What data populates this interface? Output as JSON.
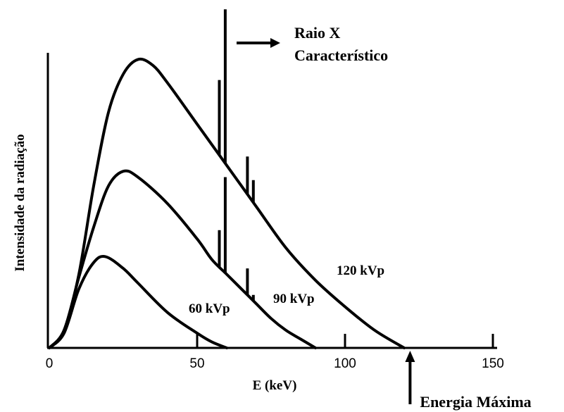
{
  "chart_data": {
    "type": "line",
    "title": "",
    "xlabel": "E (keV)",
    "ylabel": "Intensidade da radiação",
    "xlim": [
      0,
      150
    ],
    "ylim": [
      0,
      1
    ],
    "xticks": [
      0,
      50,
      100,
      150
    ],
    "grid": false,
    "legend": "none",
    "series": [
      {
        "name": "60 kVp",
        "x": [
          0,
          5,
          10,
          15,
          19,
          25,
          30,
          40,
          50,
          55,
          60
        ],
        "y": [
          0,
          0.05,
          0.2,
          0.29,
          0.31,
          0.27,
          0.22,
          0.12,
          0.05,
          0.02,
          0
        ]
      },
      {
        "name": "90 kVp",
        "x": [
          0,
          5,
          10,
          15,
          20,
          25,
          30,
          40,
          50,
          55,
          60,
          65,
          70,
          75,
          80,
          85,
          90
        ],
        "y": [
          0,
          0.06,
          0.24,
          0.41,
          0.55,
          0.6,
          0.58,
          0.49,
          0.37,
          0.3,
          0.25,
          0.2,
          0.15,
          0.1,
          0.06,
          0.03,
          0
        ]
      },
      {
        "name": "120 kVp",
        "x": [
          0,
          5,
          10,
          15,
          20,
          25,
          30,
          35,
          40,
          50,
          60,
          70,
          80,
          90,
          100,
          110,
          120
        ],
        "y": [
          0,
          0.06,
          0.25,
          0.55,
          0.8,
          0.93,
          0.98,
          0.96,
          0.9,
          0.76,
          0.62,
          0.48,
          0.34,
          0.23,
          0.14,
          0.06,
          0
        ]
      }
    ],
    "characteristic_lines": [
      {
        "series": "120 kVp",
        "x": [
          57.5,
          59.5,
          67,
          69
        ],
        "y": [
          0.91,
          1.15,
          0.65,
          0.57
        ]
      },
      {
        "series": "90 kVp",
        "x": [
          57.5,
          59.5,
          67,
          69
        ],
        "y": [
          0.4,
          0.58,
          0.27,
          0.18
        ]
      }
    ],
    "annotations": {
      "characteristic": [
        "Raio X",
        "Característico"
      ],
      "max_energy": "Energia Máxima",
      "max_energy_x": 122
    }
  }
}
